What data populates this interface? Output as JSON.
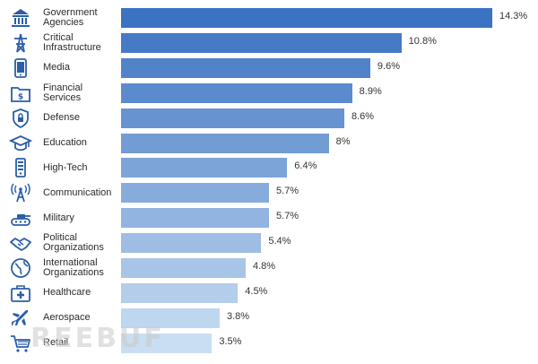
{
  "chart_data": {
    "type": "bar",
    "orientation": "horizontal",
    "categories": [
      "Government\nAgencies",
      "Critical\nInfrastructure",
      "Media",
      "Financial\nServices",
      "Defense",
      "Education",
      "High-Tech",
      "Communication",
      "Military",
      "Political\nOrganizations",
      "International\nOrganizations",
      "Healthcare",
      "Aerospace",
      "Retail"
    ],
    "values": [
      14.3,
      10.8,
      9.6,
      8.9,
      8.6,
      8,
      6.4,
      5.7,
      5.7,
      5.4,
      4.8,
      4.5,
      3.8,
      3.5
    ],
    "value_labels": [
      "14.3%",
      "10.8%",
      "9.6%",
      "8.9%",
      "8.6%",
      "8%",
      "6.4%",
      "5.7%",
      "5.7%",
      "5.4%",
      "4.8%",
      "4.5%",
      "3.8%",
      "3.5%"
    ],
    "icons": [
      "government-building-icon",
      "power-tower-icon",
      "phone-media-icon",
      "money-folder-icon",
      "shield-icon",
      "graduation-cap-icon",
      "server-icon",
      "antenna-icon",
      "tank-icon",
      "handshake-icon",
      "globe-icon",
      "medical-kit-icon",
      "airplane-icon",
      "shopping-cart-icon"
    ],
    "colors": {
      "start": "#3b72c1",
      "end": "#c9def3",
      "icon": "#2a5ea8"
    },
    "xlim": [
      0,
      14.3
    ],
    "grid": false,
    "legend": "none"
  },
  "watermark": "REEBUF"
}
